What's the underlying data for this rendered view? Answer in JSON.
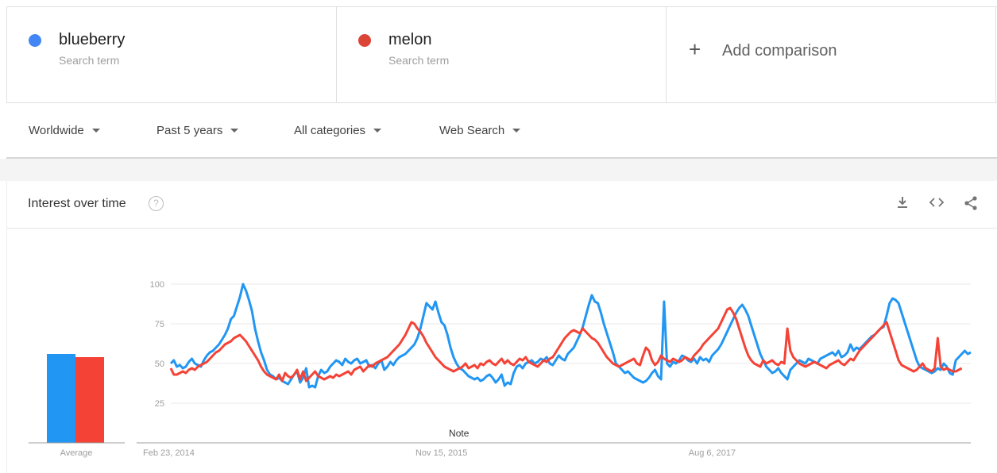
{
  "terms": [
    {
      "name": "blueberry",
      "sub": "Search term",
      "color": "#4285f4"
    },
    {
      "name": "melon",
      "sub": "Search term",
      "color": "#db4437"
    }
  ],
  "add_comparison": {
    "icon": "plus-icon",
    "label": "Add comparison"
  },
  "filters": [
    {
      "label": "Worldwide"
    },
    {
      "label": "Past 5 years"
    },
    {
      "label": "All categories"
    },
    {
      "label": "Web Search"
    }
  ],
  "panel": {
    "title": "Interest over time",
    "help_icon": "help-icon",
    "tools": [
      "download-icon",
      "embed-icon",
      "share-icon"
    ]
  },
  "chart_data": {
    "type": "line",
    "series": [
      {
        "name": "blueberry",
        "color": "#2196f3",
        "values": [
          50,
          52,
          48,
          49,
          47,
          48,
          51,
          53,
          50,
          49,
          48,
          52,
          55,
          57,
          58,
          60,
          62,
          65,
          68,
          72,
          78,
          80,
          86,
          92,
          100,
          96,
          90,
          83,
          72,
          64,
          57,
          52,
          46,
          43,
          42,
          40,
          41,
          39,
          38,
          37,
          40,
          43,
          45,
          38,
          41,
          47,
          35,
          36,
          35,
          42,
          46,
          44,
          45,
          48,
          50,
          52,
          51,
          49,
          53,
          51,
          50,
          52,
          53,
          50,
          51,
          52,
          48,
          49,
          47,
          50,
          52,
          46,
          48,
          51,
          49,
          52,
          54,
          55,
          56,
          58,
          60,
          62,
          66,
          72,
          80,
          88,
          86,
          84,
          89,
          82,
          76,
          74,
          68,
          60,
          54,
          50,
          47,
          46,
          44,
          42,
          41,
          40,
          41,
          39,
          40,
          42,
          43,
          41,
          38,
          40,
          43,
          36,
          38,
          37,
          44,
          48,
          49,
          47,
          50,
          51,
          52,
          50,
          51,
          53,
          52,
          54,
          50,
          49,
          52,
          55,
          53,
          52,
          56,
          58,
          60,
          64,
          68,
          73,
          80,
          87,
          93,
          89,
          88,
          82,
          75,
          69,
          63,
          57,
          50,
          48,
          46,
          44,
          45,
          43,
          41,
          40,
          39,
          38,
          39,
          41,
          44,
          46,
          42,
          40,
          89,
          50,
          48,
          51,
          50,
          52,
          55,
          54,
          52,
          51,
          53,
          50,
          54,
          52,
          53,
          51,
          55,
          57,
          59,
          62,
          66,
          70,
          74,
          78,
          82,
          85,
          87,
          84,
          80,
          74,
          68,
          62,
          56,
          52,
          48,
          46,
          44,
          45,
          47,
          44,
          42,
          40,
          46,
          48,
          50,
          52,
          51,
          50,
          53,
          52,
          51,
          50,
          53,
          54,
          55,
          56,
          57,
          55,
          58,
          54,
          55,
          57,
          62,
          58,
          60,
          59,
          61,
          63,
          65,
          67,
          68,
          70,
          72,
          73,
          80,
          88,
          91,
          90,
          88,
          82,
          76,
          70,
          64,
          58,
          52,
          48,
          47,
          46,
          45,
          44,
          45,
          47,
          46,
          50,
          48,
          44,
          43,
          52,
          54,
          56,
          58,
          56,
          57
        ],
        "start_date": "Feb 23, 2014"
      },
      {
        "name": "melon",
        "color": "#f44336",
        "values": [
          47,
          43,
          43,
          44,
          45,
          44,
          46,
          47,
          46,
          48,
          49,
          50,
          51,
          53,
          55,
          57,
          58,
          60,
          62,
          63,
          64,
          66,
          67,
          68,
          66,
          64,
          61,
          58,
          55,
          52,
          48,
          45,
          43,
          42,
          41,
          40,
          43,
          39,
          44,
          42,
          41,
          43,
          46,
          40,
          45,
          39,
          41,
          43,
          45,
          42,
          41,
          40,
          41,
          42,
          41,
          43,
          42,
          43,
          44,
          45,
          43,
          46,
          47,
          48,
          45,
          47,
          49,
          48,
          50,
          51,
          52,
          53,
          54,
          56,
          58,
          60,
          62,
          65,
          68,
          72,
          76,
          75,
          72,
          70,
          67,
          63,
          60,
          57,
          54,
          52,
          50,
          48,
          47,
          46,
          45,
          46,
          47,
          48,
          50,
          47,
          48,
          49,
          47,
          50,
          49,
          51,
          52,
          50,
          49,
          51,
          53,
          50,
          52,
          50,
          49,
          51,
          53,
          52,
          54,
          51,
          50,
          49,
          48,
          50,
          52,
          51,
          53,
          54,
          57,
          60,
          63,
          66,
          68,
          70,
          71,
          70,
          69,
          72,
          70,
          68,
          66,
          65,
          63,
          60,
          57,
          54,
          52,
          50,
          49,
          48,
          49,
          50,
          51,
          52,
          53,
          50,
          49,
          55,
          60,
          58,
          52,
          49,
          51,
          55,
          53,
          52,
          51,
          53,
          52,
          51,
          52,
          54,
          53,
          52,
          55,
          57,
          59,
          62,
          64,
          66,
          68,
          70,
          72,
          76,
          80,
          84,
          85,
          82,
          78,
          72,
          66,
          60,
          55,
          52,
          50,
          49,
          48,
          52,
          50,
          51,
          52,
          50,
          49,
          51,
          50,
          72,
          58,
          54,
          52,
          50,
          49,
          48,
          49,
          50,
          51,
          50,
          49,
          48,
          47,
          49,
          50,
          51,
          52,
          50,
          49,
          51,
          53,
          52,
          55,
          58,
          60,
          62,
          64,
          66,
          68,
          70,
          72,
          74,
          76,
          70,
          64,
          58,
          52,
          49,
          48,
          47,
          46,
          45,
          46,
          48,
          50,
          47,
          46,
          45,
          47,
          66,
          48,
          46,
          47,
          46,
          45,
          45,
          46,
          47
        ],
        "start_date": "Feb 23, 2014"
      }
    ],
    "y_ticks": [
      25,
      50,
      75,
      100
    ],
    "ylim": [
      0,
      100
    ],
    "x_tick_labels": [
      "Feb 23, 2014",
      "Nov 15, 2015",
      "Aug 6, 2017"
    ],
    "x_tick_index": [
      0,
      90,
      180
    ],
    "annotation": {
      "label": "Note",
      "index": 90
    },
    "average": {
      "label": "Average",
      "values": [
        {
          "series": "blueberry",
          "value": 56
        },
        {
          "series": "melon",
          "value": 54
        }
      ]
    },
    "grid": true
  }
}
